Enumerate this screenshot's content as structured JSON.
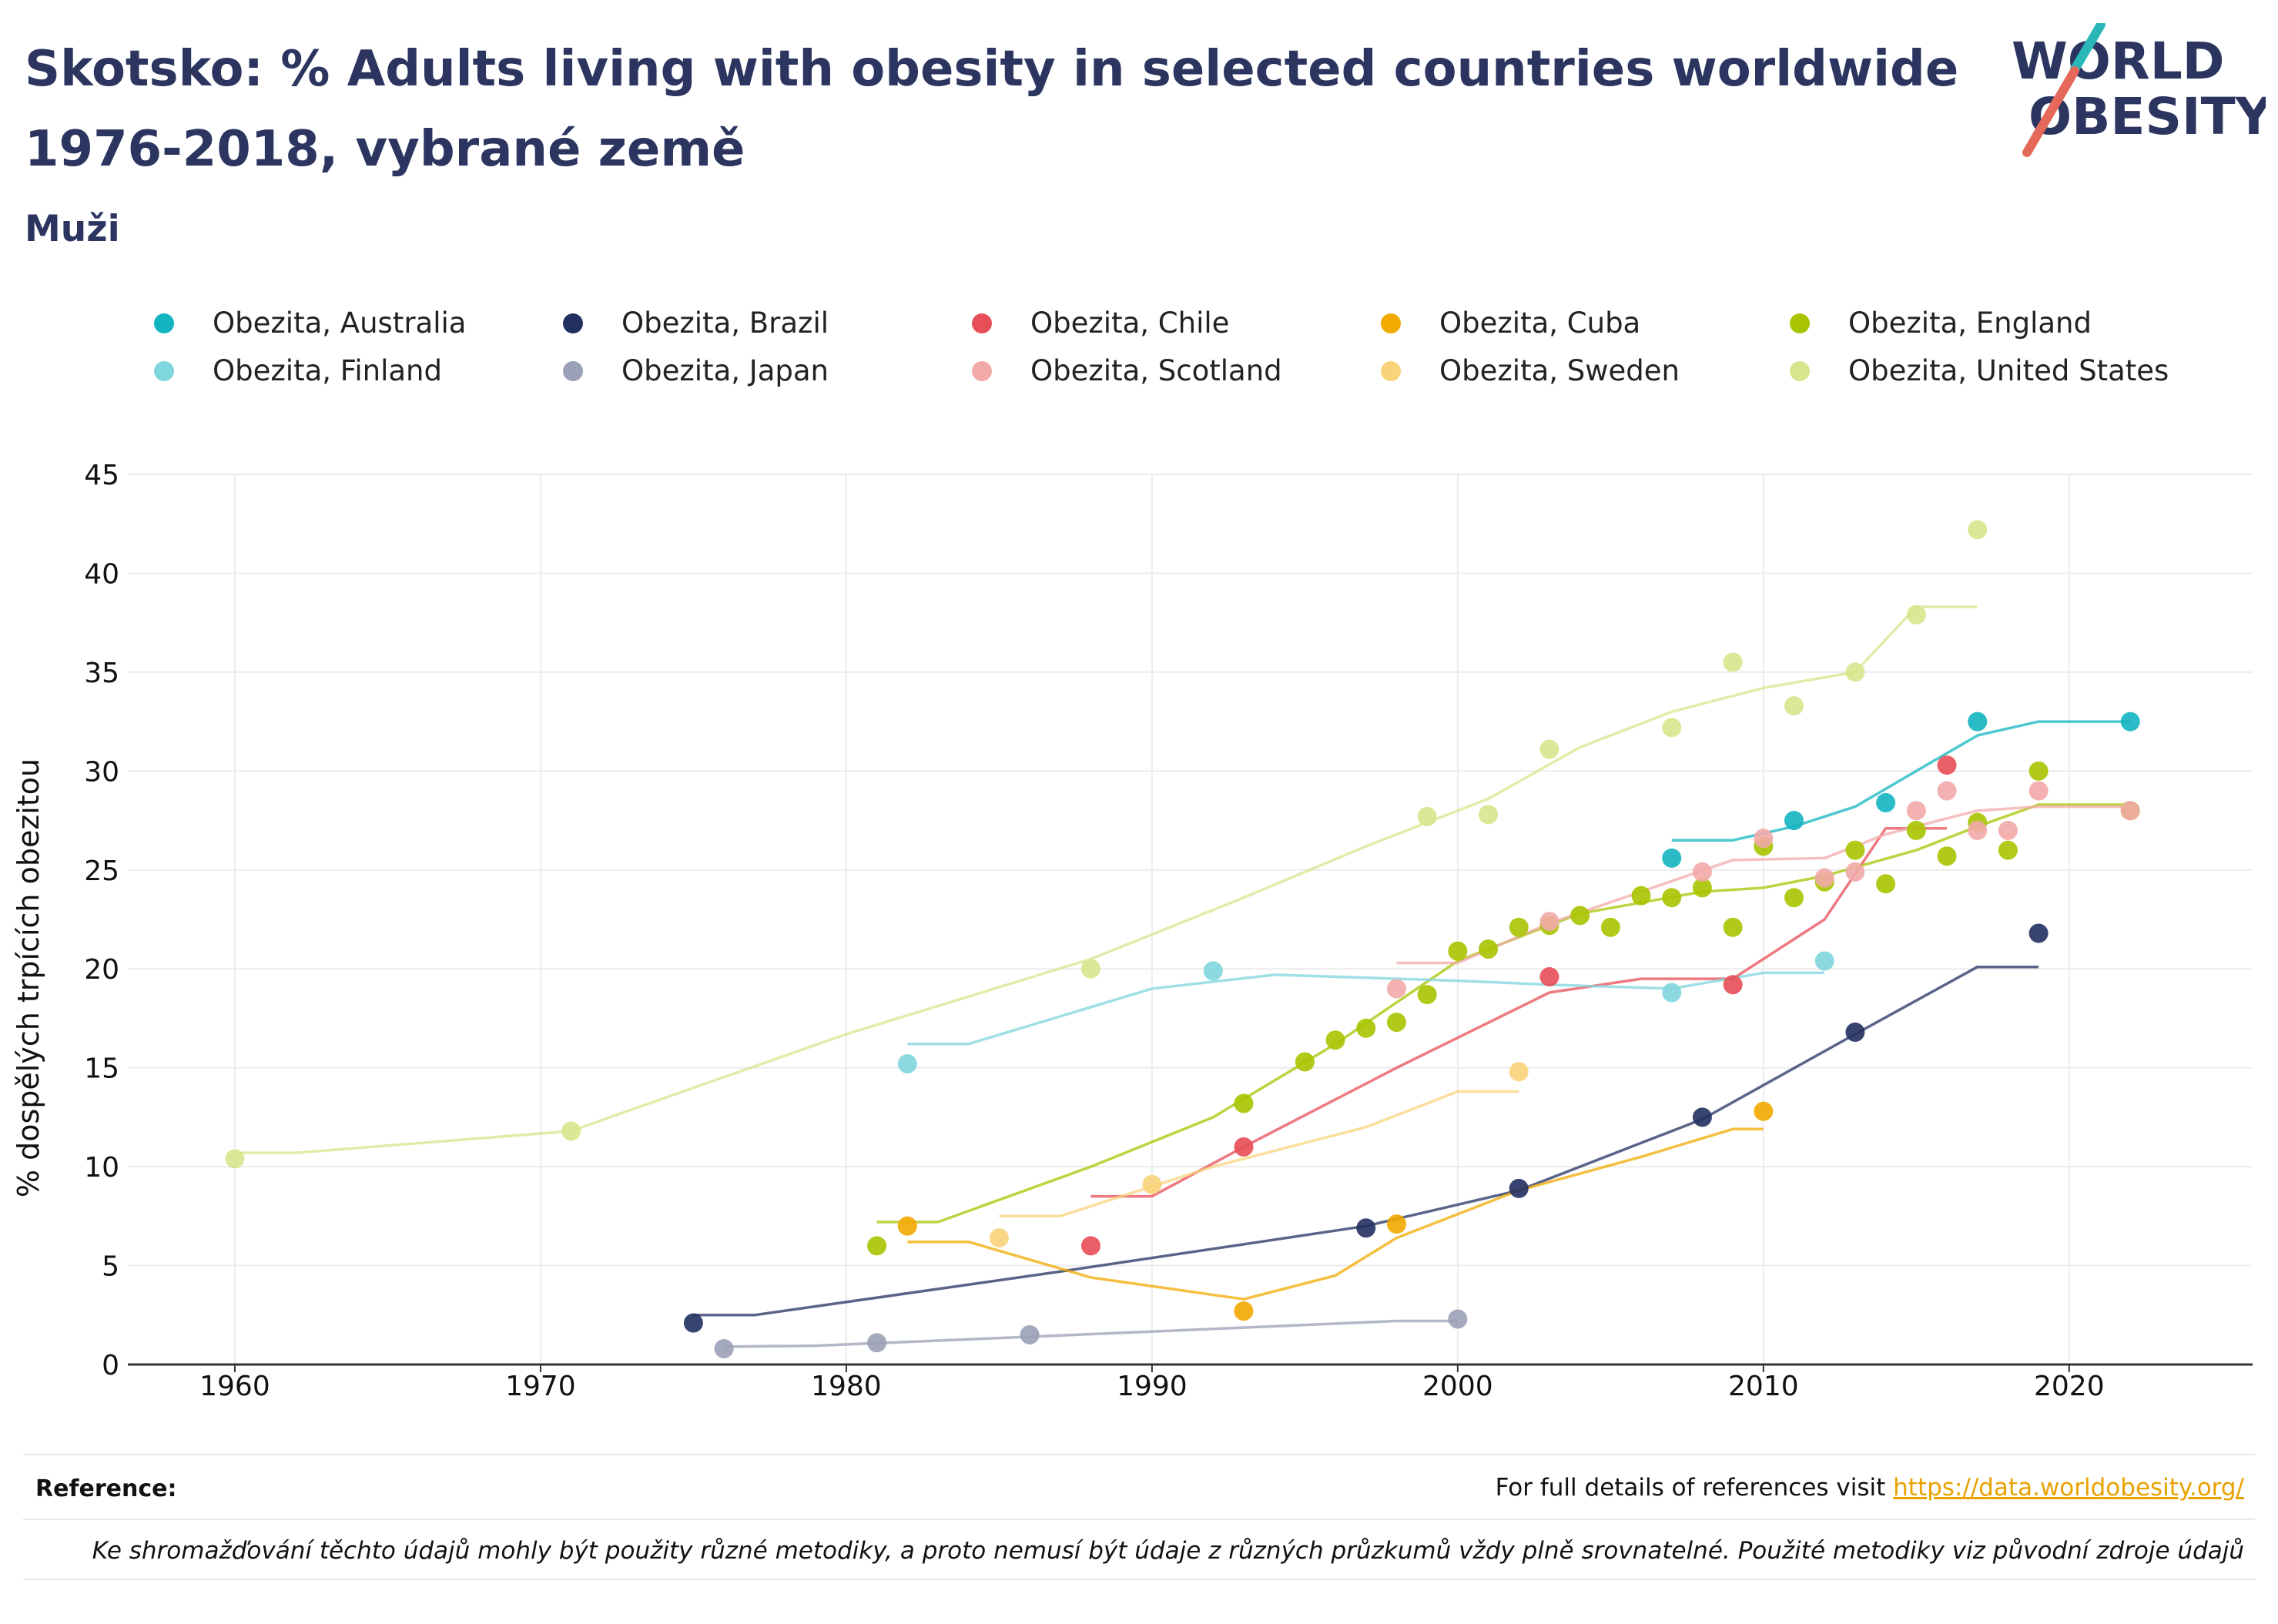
{
  "page": {
    "title": "Skotsko: % Adults living with obesity in selected countries worldwide 1976-2018, vybrané země",
    "subtitle": "Muži",
    "logo_line1": "WORLD",
    "logo_line2": "OBESITY",
    "reference_label": "Reference:",
    "reference_text": "For full details of references visit ",
    "reference_link": "https://data.worldobesity.org/",
    "footnote": "Ke shromažďování těchto údajů mohly být použity různé metodiky, a proto nemusí být údaje z různých průzkumů vždy plně srovnatelné. Použité metodiky viz původní zdroje údajů"
  },
  "chart_data": {
    "type": "scatter",
    "title": "Skotsko: % Adults living with obesity in selected countries worldwide 1976-2018, vybrané země",
    "subtitle": "Muži",
    "xlabel": "",
    "ylabel": "% dospělých trpících obezitou",
    "xlim": [
      1956.5,
      2026
    ],
    "ylim": [
      0,
      45
    ],
    "xticks": [
      1960,
      1970,
      1980,
      1990,
      2000,
      2010,
      2020
    ],
    "yticks": [
      0,
      5,
      10,
      15,
      20,
      25,
      30,
      35,
      40,
      45
    ],
    "grid": true,
    "legend_position": "top",
    "series": [
      {
        "name": "Obezita, Australia",
        "color": "#12b4c0",
        "points": [
          [
            2007,
            25.6
          ],
          [
            2011,
            27.5
          ],
          [
            2014,
            28.4
          ],
          [
            2017,
            32.5
          ],
          [
            2022,
            32.5
          ]
        ],
        "trend": [
          [
            2007,
            26.5
          ],
          [
            2009,
            26.5
          ],
          [
            2011,
            27.2
          ],
          [
            2013,
            28.2
          ],
          [
            2015,
            30.0
          ],
          [
            2017,
            31.8
          ],
          [
            2019,
            32.5
          ],
          [
            2022,
            32.5
          ]
        ]
      },
      {
        "name": "Obezita, Brazil",
        "color": "#223060",
        "points": [
          [
            1975,
            2.1
          ],
          [
            1997,
            6.9
          ],
          [
            2002,
            8.9
          ],
          [
            2008,
            12.5
          ],
          [
            2013,
            16.8
          ],
          [
            2019,
            21.8
          ]
        ],
        "trend": [
          [
            1975,
            2.5
          ],
          [
            1977,
            2.5
          ],
          [
            1987,
            4.7
          ],
          [
            1997,
            7.0
          ],
          [
            2002,
            8.8
          ],
          [
            2008,
            12.4
          ],
          [
            2013,
            16.7
          ],
          [
            2017,
            20.1
          ],
          [
            2019,
            20.1
          ]
        ]
      },
      {
        "name": "Obezita, Chile",
        "color": "#e84e57",
        "points": [
          [
            1988,
            6.0
          ],
          [
            1993,
            11.0
          ],
          [
            2003,
            19.6
          ],
          [
            2009,
            19.2
          ],
          [
            2016,
            30.3
          ]
        ],
        "trend": [
          [
            1988,
            8.5
          ],
          [
            1990,
            8.5
          ],
          [
            1993,
            11.0
          ],
          [
            1998,
            15.0
          ],
          [
            2003,
            18.8
          ],
          [
            2006,
            19.5
          ],
          [
            2009,
            19.5
          ],
          [
            2012,
            22.5
          ],
          [
            2014,
            27.1
          ],
          [
            2016,
            27.1
          ]
        ]
      },
      {
        "name": "Obezita, Cuba",
        "color": "#f2a900",
        "points": [
          [
            1982,
            7.0
          ],
          [
            1993,
            2.7
          ],
          [
            1998,
            7.1
          ],
          [
            2010,
            12.8
          ]
        ],
        "trend": [
          [
            1982,
            6.2
          ],
          [
            1984,
            6.2
          ],
          [
            1988,
            4.4
          ],
          [
            1993,
            3.3
          ],
          [
            1996,
            4.5
          ],
          [
            1998,
            6.4
          ],
          [
            2002,
            8.8
          ],
          [
            2006,
            10.5
          ],
          [
            2009,
            11.9
          ],
          [
            2010,
            11.9
          ]
        ]
      },
      {
        "name": "Obezita, England",
        "color": "#a8c400",
        "points": [
          [
            1981,
            6.0
          ],
          [
            1993,
            13.2
          ],
          [
            1995,
            15.3
          ],
          [
            1996,
            16.4
          ],
          [
            1997,
            17.0
          ],
          [
            1998,
            17.3
          ],
          [
            1999,
            18.7
          ],
          [
            2000,
            20.9
          ],
          [
            2001,
            21.0
          ],
          [
            2002,
            22.1
          ],
          [
            2003,
            22.2
          ],
          [
            2004,
            22.7
          ],
          [
            2005,
            22.1
          ],
          [
            2006,
            23.7
          ],
          [
            2007,
            23.6
          ],
          [
            2008,
            24.1
          ],
          [
            2009,
            22.1
          ],
          [
            2010,
            26.2
          ],
          [
            2011,
            23.6
          ],
          [
            2012,
            24.4
          ],
          [
            2013,
            26.0
          ],
          [
            2014,
            24.3
          ],
          [
            2015,
            27.0
          ],
          [
            2016,
            25.7
          ],
          [
            2017,
            27.4
          ],
          [
            2018,
            26.0
          ],
          [
            2019,
            30.0
          ],
          [
            2022,
            28.0
          ]
        ],
        "trend": [
          [
            1981,
            7.2
          ],
          [
            1983,
            7.2
          ],
          [
            1988,
            10.0
          ],
          [
            1992,
            12.5
          ],
          [
            1996,
            16.2
          ],
          [
            2000,
            20.4
          ],
          [
            2004,
            22.8
          ],
          [
            2008,
            23.9
          ],
          [
            2010,
            24.1
          ],
          [
            2012,
            24.7
          ],
          [
            2015,
            26.0
          ],
          [
            2017,
            27.2
          ],
          [
            2019,
            28.3
          ],
          [
            2022,
            28.3
          ]
        ]
      },
      {
        "name": "Obezita, Finland",
        "color": "#7fd6dc",
        "points": [
          [
            1982,
            15.2
          ],
          [
            1992,
            19.9
          ],
          [
            2007,
            18.8
          ],
          [
            2012,
            20.4
          ]
        ],
        "trend": [
          [
            1982,
            16.2
          ],
          [
            1984,
            16.2
          ],
          [
            1990,
            19.0
          ],
          [
            1994,
            19.7
          ],
          [
            2000,
            19.4
          ],
          [
            2003,
            19.2
          ],
          [
            2007,
            19.0
          ],
          [
            2010,
            19.8
          ],
          [
            2012,
            19.8
          ]
        ]
      },
      {
        "name": "Obezita, Japan",
        "color": "#9aa0b6",
        "points": [
          [
            1976,
            0.8
          ],
          [
            1981,
            1.1
          ],
          [
            1986,
            1.5
          ],
          [
            2000,
            2.3
          ]
        ],
        "trend": [
          [
            1976,
            0.9
          ],
          [
            1979,
            0.95
          ],
          [
            1986,
            1.4
          ],
          [
            1992,
            1.8
          ],
          [
            1998,
            2.2
          ],
          [
            2000,
            2.2
          ]
        ]
      },
      {
        "name": "Obezita, Scotland",
        "color": "#f2aaa8",
        "points": [
          [
            1998,
            19.0
          ],
          [
            2003,
            22.4
          ],
          [
            2008,
            24.9
          ],
          [
            2010,
            26.6
          ],
          [
            2012,
            24.6
          ],
          [
            2013,
            24.9
          ],
          [
            2015,
            28.0
          ],
          [
            2016,
            29.0
          ],
          [
            2017,
            27.0
          ],
          [
            2018,
            27.0
          ],
          [
            2019,
            29.0
          ],
          [
            2022,
            28.0
          ]
        ],
        "trend": [
          [
            1998,
            20.3
          ],
          [
            2000,
            20.3
          ],
          [
            2003,
            22.3
          ],
          [
            2006,
            23.9
          ],
          [
            2009,
            25.5
          ],
          [
            2012,
            25.6
          ],
          [
            2014,
            26.8
          ],
          [
            2017,
            28.0
          ],
          [
            2019,
            28.2
          ],
          [
            2022,
            28.2
          ]
        ]
      },
      {
        "name": "Obezita, Sweden",
        "color": "#f8d37a",
        "points": [
          [
            1985,
            6.4
          ],
          [
            1990,
            9.1
          ],
          [
            2002,
            14.8
          ]
        ],
        "trend": [
          [
            1985,
            7.5
          ],
          [
            1987,
            7.5
          ],
          [
            1992,
            10.0
          ],
          [
            1997,
            12.0
          ],
          [
            2000,
            13.8
          ],
          [
            2002,
            13.8
          ]
        ]
      },
      {
        "name": "Obezita, United States",
        "color": "#d7e58c",
        "points": [
          [
            1960,
            10.4
          ],
          [
            1971,
            11.8
          ],
          [
            1988,
            20.0
          ],
          [
            1999,
            27.7
          ],
          [
            2001,
            27.8
          ],
          [
            2003,
            31.1
          ],
          [
            2007,
            32.2
          ],
          [
            2009,
            35.5
          ],
          [
            2011,
            33.3
          ],
          [
            2013,
            35.0
          ],
          [
            2015,
            37.9
          ],
          [
            2017,
            42.2
          ]
        ],
        "trend": [
          [
            1960,
            10.7
          ],
          [
            1962,
            10.7
          ],
          [
            1971,
            11.8
          ],
          [
            1973,
            12.9
          ],
          [
            1980,
            16.7
          ],
          [
            1988,
            20.5
          ],
          [
            1993,
            23.6
          ],
          [
            1997,
            26.2
          ],
          [
            2001,
            28.6
          ],
          [
            2004,
            31.2
          ],
          [
            2007,
            33.0
          ],
          [
            2010,
            34.2
          ],
          [
            2013,
            35.0
          ],
          [
            2015,
            38.3
          ],
          [
            2017,
            38.3
          ]
        ]
      }
    ]
  }
}
